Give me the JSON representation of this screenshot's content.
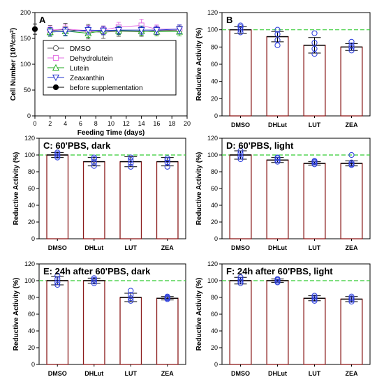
{
  "colors": {
    "bar_edge": "#8b1a1a",
    "point": "#3344dd",
    "reference_line": "#33cc33",
    "dmso": "#555555",
    "dehydrolutein": "#e36fe3",
    "lutein": "#22aa22",
    "zeaxanthin": "#2233cc",
    "before": "#000000"
  },
  "chart_data": [
    {
      "id": "A",
      "type": "line",
      "title": "A",
      "xlabel": "Feeding Time (days)",
      "ylabel_main": "Cell Number (10",
      "ylabel_sup1": "3",
      "ylabel_mid": "/cm",
      "ylabel_sup2": "2",
      "ylabel_end": ")",
      "xlim": [
        0,
        20
      ],
      "ylim": [
        0,
        200
      ],
      "xticks": [
        "0",
        "2",
        "4",
        "6",
        "8",
        "10",
        "12",
        "14",
        "16",
        "18",
        "20"
      ],
      "yticks": [
        "0",
        "50",
        "100",
        "150",
        "200"
      ],
      "x": [
        2,
        4,
        7,
        9,
        11,
        14,
        16,
        19
      ],
      "legend_position": "center",
      "series": [
        {
          "name": "DMSO",
          "color": "#555555",
          "marker": "circle",
          "values": [
            165,
            167,
            163,
            162,
            164,
            163,
            165,
            166
          ],
          "err": [
            10,
            12,
            14,
            12,
            10,
            9,
            8,
            8
          ]
        },
        {
          "name": "Dehydrolutein",
          "color": "#e36fe3",
          "marker": "square",
          "values": [
            166,
            168,
            165,
            166,
            172,
            175,
            168,
            168
          ],
          "err": [
            8,
            8,
            10,
            8,
            9,
            12,
            8,
            8
          ]
        },
        {
          "name": "Lutein",
          "color": "#22aa22",
          "marker": "triangle-up",
          "values": [
            162,
            164,
            160,
            165,
            165,
            164,
            163,
            163
          ],
          "err": [
            8,
            8,
            8,
            8,
            8,
            8,
            8,
            8
          ]
        },
        {
          "name": "Zeaxanthin",
          "color": "#2233cc",
          "marker": "triangle-down",
          "values": [
            163,
            163,
            166,
            165,
            166,
            166,
            166,
            168
          ],
          "err": [
            8,
            8,
            8,
            8,
            8,
            8,
            8,
            8
          ]
        },
        {
          "name": "before supplementation",
          "color": "#000000",
          "marker": "filled-circle",
          "x": [
            0
          ],
          "values": [
            168
          ],
          "err": [
            10
          ]
        }
      ]
    },
    {
      "id": "B",
      "type": "bar",
      "title": "B",
      "ylabel": "Reductive Activity (%)",
      "categories": [
        "DMSO",
        "DHLut",
        "LUT",
        "ZEA"
      ],
      "values": [
        100,
        92,
        82,
        80
      ],
      "err": [
        4,
        6,
        9,
        4
      ],
      "points": [
        [
          97,
          100,
          103,
          105
        ],
        [
          82,
          88,
          95,
          100
        ],
        [
          72,
          78,
          85,
          96
        ],
        [
          76,
          79,
          82,
          86
        ]
      ],
      "ylim": [
        0,
        120
      ],
      "yticks": [
        "0",
        "20",
        "40",
        "60",
        "80",
        "100",
        "120"
      ],
      "reference": 100
    },
    {
      "id": "C",
      "type": "bar",
      "title": "C: 60'PBS, dark",
      "ylabel": "Reductive Activity (%)",
      "categories": [
        "DMSO",
        "DHLut",
        "LUT",
        "ZEA"
      ],
      "values": [
        100,
        92,
        92,
        92
      ],
      "err": [
        3,
        5,
        6,
        5
      ],
      "points": [
        [
          97,
          99,
          101,
          103
        ],
        [
          87,
          91,
          95,
          97
        ],
        [
          86,
          90,
          94,
          97
        ],
        [
          86,
          91,
          94,
          96
        ]
      ],
      "ylim": [
        0,
        120
      ],
      "yticks": [
        "0",
        "20",
        "40",
        "60",
        "80",
        "100",
        "120"
      ],
      "reference": 100
    },
    {
      "id": "D",
      "type": "bar",
      "title": "D: 60'PBS, light",
      "ylabel": "Reductive Activity (%)",
      "categories": [
        "DMSO",
        "DHLut",
        "LUT",
        "ZEA"
      ],
      "values": [
        100,
        94,
        90,
        90
      ],
      "err": [
        5,
        3,
        2,
        3
      ],
      "points": [
        [
          95,
          98,
          102,
          105
        ],
        [
          92,
          94,
          96,
          97
        ],
        [
          89,
          91,
          92,
          93
        ],
        [
          88,
          89,
          91,
          100
        ]
      ],
      "ylim": [
        0,
        120
      ],
      "yticks": [
        "0",
        "20",
        "40",
        "60",
        "80",
        "100",
        "120"
      ],
      "reference": 100
    },
    {
      "id": "E",
      "type": "bar",
      "title": "E: 24h after 60'PBS, dark",
      "ylabel": "Reductive Activity (%)",
      "categories": [
        "DMSO",
        "DHLut",
        "LUT",
        "ZEA"
      ],
      "values": [
        100,
        100,
        80,
        79
      ],
      "err": [
        5,
        3,
        5,
        2
      ],
      "points": [
        [
          95,
          98,
          102,
          106
        ],
        [
          97,
          99,
          101,
          103
        ],
        [
          76,
          79,
          83,
          88
        ],
        [
          78,
          79,
          80,
          81
        ]
      ],
      "ylim": [
        0,
        120
      ],
      "yticks": [
        "0",
        "20",
        "40",
        "60",
        "80",
        "100",
        "120"
      ],
      "reference": 100
    },
    {
      "id": "F",
      "type": "bar",
      "title": "F: 24h after 60'PBS, light",
      "ylabel": "Reductive Activity (%)",
      "categories": [
        "DMSO",
        "DHLut",
        "LUT",
        "ZEA"
      ],
      "values": [
        100,
        100,
        79,
        78
      ],
      "err": [
        4,
        2,
        3,
        3
      ],
      "points": [
        [
          97,
          99,
          101,
          104
        ],
        [
          98,
          99,
          101,
          102
        ],
        [
          76,
          78,
          80,
          82
        ],
        [
          75,
          77,
          79,
          81
        ]
      ],
      "ylim": [
        0,
        120
      ],
      "yticks": [
        "0",
        "20",
        "40",
        "60",
        "80",
        "100",
        "120"
      ],
      "reference": 100
    }
  ]
}
